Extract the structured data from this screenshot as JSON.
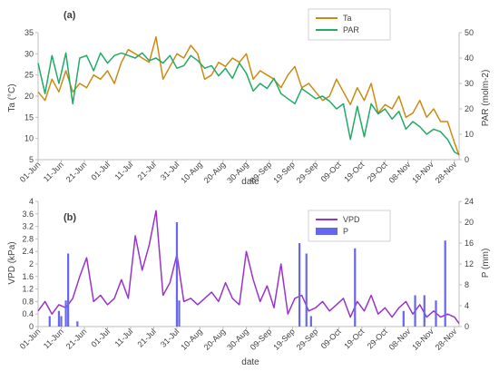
{
  "chart_data": [
    {
      "type": "line",
      "panel_label": "(a)",
      "xlabel": "date",
      "ylabel_left": "Ta (°C)",
      "ylabel_right": "PAR (molm-2)",
      "ylim_left": [
        5,
        35
      ],
      "ylim_right": [
        0,
        50
      ],
      "yticks_left": [
        "5",
        "10",
        "15",
        "20",
        "25",
        "30",
        "35"
      ],
      "yticks_right": [
        "0",
        "10",
        "20",
        "30",
        "40",
        "50"
      ],
      "xticks": [
        "01-Jun",
        "11-Jun",
        "21-Jun",
        "01-Jul",
        "11-Jul",
        "21-Jul",
        "31-Jul",
        "10-Aug",
        "20-Aug",
        "30-Aug",
        "09-Sep",
        "19-Sep",
        "29-Sep",
        "09-Oct",
        "19-Oct",
        "29-Oct",
        "08-Nov",
        "18-Nov",
        "28-Nov"
      ],
      "x_start_day": 0,
      "x_end_day": 182,
      "grid": false,
      "legend": "top-right",
      "series": [
        {
          "name": "Ta",
          "axis": "left",
          "color": "#CC8A12",
          "x": [
            0,
            3,
            6,
            9,
            12,
            15,
            18,
            21,
            24,
            27,
            30,
            33,
            36,
            39,
            42,
            45,
            48,
            51,
            54,
            57,
            60,
            63,
            66,
            69,
            72,
            75,
            78,
            81,
            84,
            87,
            90,
            93,
            96,
            99,
            102,
            105,
            108,
            111,
            114,
            117,
            120,
            123,
            126,
            129,
            132,
            135,
            138,
            141,
            144,
            147,
            150,
            153,
            156,
            159,
            162,
            165,
            168,
            171,
            174,
            177,
            180,
            182
          ],
          "values": [
            21,
            19,
            24,
            21,
            26,
            21,
            23,
            22,
            25,
            24,
            26,
            23,
            28,
            31,
            30,
            29,
            28,
            34,
            24,
            27,
            30,
            29,
            32,
            30,
            24,
            25,
            28,
            27,
            29,
            28,
            30,
            24,
            26,
            25,
            24,
            22,
            25,
            27,
            22,
            23,
            21,
            19,
            20,
            24,
            21,
            18,
            22,
            19,
            23,
            16,
            18,
            17,
            20,
            15,
            16,
            19,
            15,
            17,
            14,
            14,
            9,
            6
          ]
        },
        {
          "name": "PAR",
          "axis": "right",
          "color": "#22AA66",
          "x": [
            0,
            3,
            6,
            9,
            12,
            15,
            18,
            21,
            24,
            27,
            30,
            33,
            36,
            39,
            42,
            45,
            48,
            51,
            54,
            57,
            60,
            63,
            66,
            69,
            72,
            75,
            78,
            81,
            84,
            87,
            90,
            93,
            96,
            99,
            102,
            105,
            108,
            111,
            114,
            117,
            120,
            123,
            126,
            129,
            132,
            135,
            138,
            141,
            144,
            147,
            150,
            153,
            156,
            159,
            162,
            165,
            168,
            171,
            174,
            177,
            180,
            182
          ],
          "values": [
            38,
            26,
            41,
            30,
            42,
            22,
            40,
            41,
            35,
            42,
            38,
            41,
            42,
            41,
            40,
            42,
            39,
            40,
            38,
            41,
            36,
            37,
            41,
            39,
            36,
            37,
            33,
            36,
            32,
            38,
            34,
            27,
            30,
            28,
            32,
            26,
            24,
            22,
            28,
            26,
            24,
            25,
            23,
            20,
            22,
            8,
            21,
            9,
            22,
            18,
            20,
            16,
            19,
            12,
            15,
            13,
            10,
            12,
            11,
            8,
            3,
            2
          ]
        }
      ]
    },
    {
      "type": "line",
      "panel_label": "(b)",
      "xlabel": "date",
      "ylabel_left": "VPD (kPa)",
      "ylabel_right": "P (mm)",
      "ylim_left": [
        0,
        4
      ],
      "ylim_right": [
        0,
        24
      ],
      "yticks_left": [
        "0",
        "0.4",
        "0.8",
        "1.2",
        "1.6",
        "2",
        "2.4",
        "2.8",
        "3.2",
        "3.6",
        "4"
      ],
      "yticks_right": [
        "0",
        "4",
        "8",
        "12",
        "16",
        "20",
        "24"
      ],
      "xticks": [
        "01-Jun",
        "11-Jun",
        "21-Jun",
        "01-Jul",
        "11-Jul",
        "21-Jul",
        "31-Jul",
        "10-Aug",
        "20-Aug",
        "30-Aug",
        "09-Sep",
        "19-Sep",
        "29-Sep",
        "09-Oct",
        "19-Oct",
        "29-Oct",
        "08-Nov",
        "18-Nov",
        "28-Nov"
      ],
      "x_start_day": 0,
      "x_end_day": 182,
      "grid": false,
      "legend": "top-right",
      "series": [
        {
          "name": "VPD",
          "type": "line",
          "axis": "left",
          "color": "#9933CC",
          "x": [
            0,
            3,
            6,
            9,
            12,
            15,
            18,
            21,
            24,
            27,
            30,
            33,
            36,
            39,
            42,
            45,
            48,
            51,
            54,
            57,
            60,
            63,
            66,
            69,
            72,
            75,
            78,
            81,
            84,
            87,
            90,
            93,
            96,
            99,
            102,
            105,
            108,
            111,
            114,
            117,
            120,
            123,
            126,
            129,
            132,
            135,
            138,
            141,
            144,
            147,
            150,
            153,
            156,
            159,
            162,
            165,
            168,
            171,
            174,
            177,
            180,
            182
          ],
          "values": [
            0.5,
            0.8,
            0.4,
            0.7,
            0.6,
            0.9,
            1.6,
            2.2,
            0.8,
            1.0,
            0.7,
            0.9,
            1.5,
            0.9,
            2.9,
            1.8,
            2.6,
            3.7,
            1.0,
            1.4,
            2.3,
            0.8,
            0.9,
            0.7,
            0.9,
            1.1,
            0.8,
            1.4,
            0.9,
            0.7,
            2.4,
            1.5,
            0.8,
            1.3,
            0.6,
            2.0,
            0.4,
            0.9,
            1.0,
            0.5,
            0.6,
            0.8,
            0.5,
            0.7,
            0.9,
            0.3,
            0.8,
            0.5,
            1.0,
            0.4,
            0.6,
            0.3,
            0.6,
            0.8,
            0.4,
            0.7,
            0.3,
            0.5,
            0.3,
            0.4,
            0.3,
            0.1
          ]
        },
        {
          "name": "P",
          "type": "bar",
          "axis": "right",
          "color": "#6666EE",
          "x": [
            5,
            9,
            10,
            12,
            13,
            17,
            60,
            61,
            113,
            116,
            118,
            137,
            158,
            163,
            167,
            172,
            176
          ],
          "values": [
            2,
            3,
            2,
            5,
            14,
            1,
            20,
            5,
            16,
            14,
            2,
            15,
            3,
            6,
            6,
            5,
            16.5
          ]
        }
      ]
    }
  ]
}
